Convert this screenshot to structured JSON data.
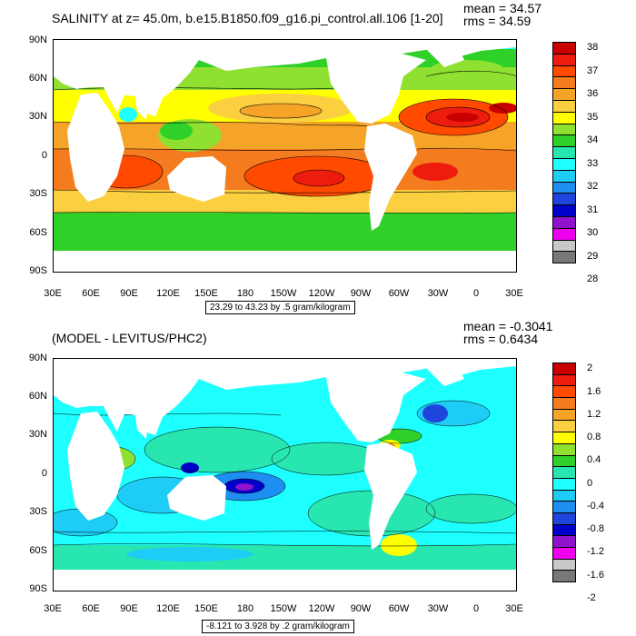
{
  "panels": [
    {
      "title": "SALINITY at z=  45.0m, b.e15.B1850.f09_g16.pi_control.all.106 [1-20]",
      "mean_label": "mean = 34.57",
      "rms_label": "rms = 34.59",
      "range_label": "23.29 to 43.23 by .5 gram/kilogram",
      "colorbar": {
        "colors": [
          "#c80000",
          "#ee1c0e",
          "#ff4a00",
          "#f47c1e",
          "#f5a428",
          "#fbd040",
          "#ffff00",
          "#8fe030",
          "#2fd028",
          "#28e6b0",
          "#1effff",
          "#1ecdf5",
          "#1e8ff0",
          "#1e46dc",
          "#0000c8",
          "#9012cc",
          "#ee00ee",
          "#c8c8c8",
          "#787878"
        ],
        "labels": [
          "38",
          "37",
          "36",
          "35",
          "34",
          "33",
          "32",
          "31",
          "30",
          "29",
          "28"
        ]
      }
    },
    {
      "title": "(MODEL - LEVITUS/PHC2)",
      "mean_label": "mean = -0.3041",
      "rms_label": "rms = 0.6434",
      "range_label": "-8.121 to 3.928 by .2 gram/kilogram",
      "colorbar": {
        "colors": [
          "#c80000",
          "#ee1c0e",
          "#ff4a00",
          "#f47c1e",
          "#f5a428",
          "#fbd040",
          "#ffff00",
          "#8fe030",
          "#2fd028",
          "#28e6b0",
          "#1effff",
          "#1ecdf5",
          "#1e8ff0",
          "#1e46dc",
          "#0000c8",
          "#9012cc",
          "#ee00ee",
          "#c8c8c8",
          "#787878"
        ],
        "labels": [
          "2",
          "1.6",
          "1.2",
          "0.8",
          "0.4",
          "0",
          "-0.4",
          "-0.8",
          "-1.2",
          "-1.6",
          "-2"
        ]
      }
    }
  ],
  "axes": {
    "y_labels": [
      "90N",
      "60N",
      "30N",
      "0",
      "30S",
      "60S",
      "90S"
    ],
    "x_labels": [
      "30E",
      "60E",
      "90E",
      "120E",
      "150E",
      "180",
      "150W",
      "120W",
      "90W",
      "60W",
      "30W",
      "0",
      "30E"
    ]
  }
}
